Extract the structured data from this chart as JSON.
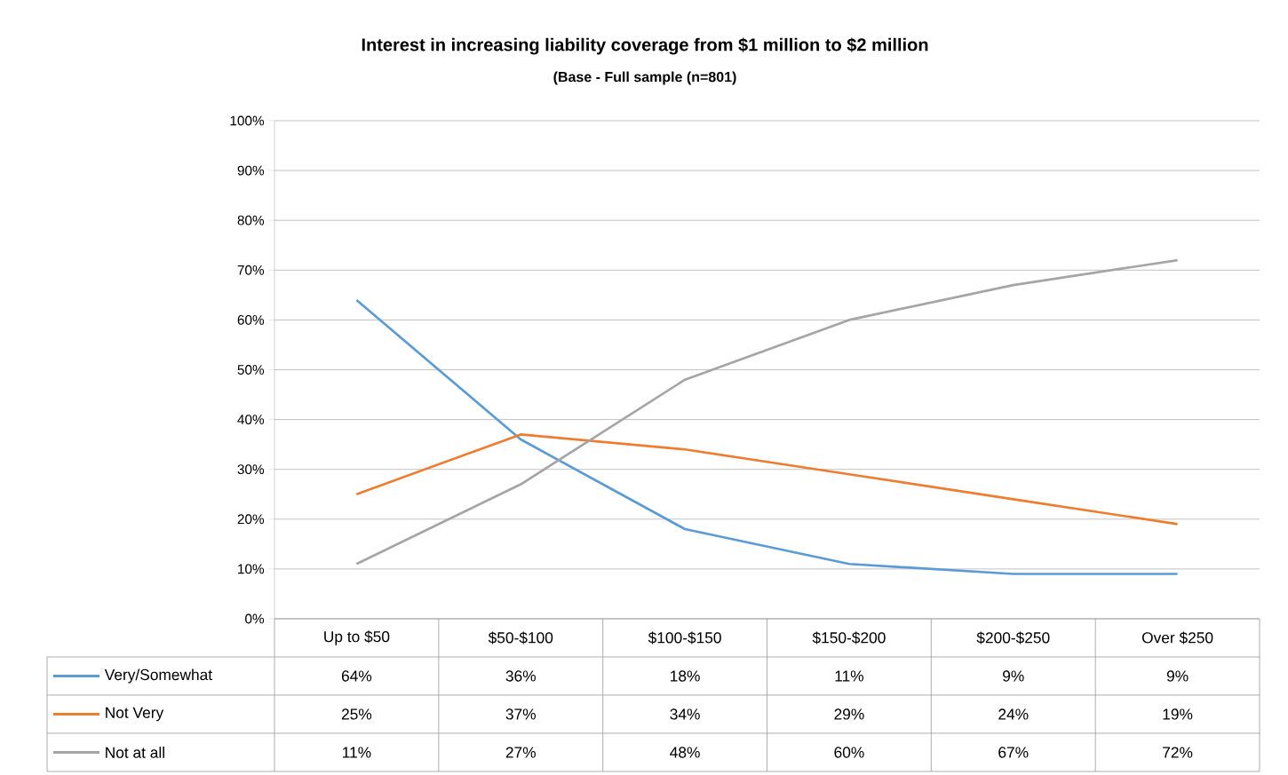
{
  "chart_data": {
    "type": "line",
    "title": "Interest in increasing liability coverage from $1 million to $2 million",
    "subtitle": "(Base - Full sample (n=801)",
    "categories": [
      "Up to $50",
      "$50-$100",
      "$100-$150",
      "$150-$200",
      "$200-$250",
      "Over $250"
    ],
    "series": [
      {
        "name": "Very/Somewhat",
        "color": "#5b9bd5",
        "values": [
          64,
          36,
          18,
          11,
          9,
          9
        ],
        "value_labels": [
          "64%",
          "36%",
          "18%",
          "11%",
          "9%",
          "9%"
        ]
      },
      {
        "name": "Not Very",
        "color": "#ed7d31",
        "values": [
          25,
          37,
          34,
          29,
          24,
          19
        ],
        "value_labels": [
          "25%",
          "37%",
          "34%",
          "29%",
          "24%",
          "19%"
        ]
      },
      {
        "name": "Not at all",
        "color": "#a5a5a5",
        "values": [
          11,
          27,
          48,
          60,
          67,
          72
        ],
        "value_labels": [
          "11%",
          "27%",
          "48%",
          "60%",
          "67%",
          "72%"
        ]
      }
    ],
    "ylim": [
      0,
      100
    ],
    "yticks": [
      {
        "value": 0,
        "label": "0%"
      },
      {
        "value": 10,
        "label": "10%"
      },
      {
        "value": 20,
        "label": "20%"
      },
      {
        "value": 30,
        "label": "30%"
      },
      {
        "value": 40,
        "label": "40%"
      },
      {
        "value": 50,
        "label": "50%"
      },
      {
        "value": 60,
        "label": "60%"
      },
      {
        "value": 70,
        "label": "70%"
      },
      {
        "value": 80,
        "label": "80%"
      },
      {
        "value": 90,
        "label": "90%"
      },
      {
        "value": 100,
        "label": "100%"
      }
    ],
    "grid": "y",
    "legend": "bottom"
  }
}
